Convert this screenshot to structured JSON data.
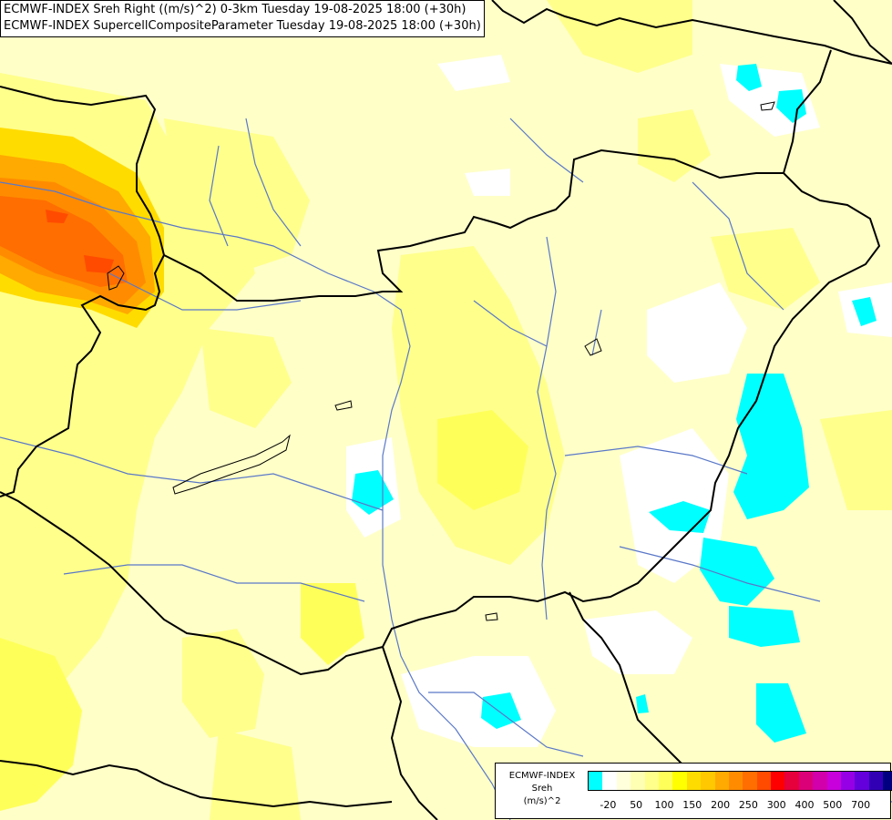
{
  "title_lines": [
    "ECMWF-INDEX Sreh Right ((m/s)^2) 0-3km Tuesday 19-08-2025 18:00 (+30h)",
    "ECMWF-INDEX SupercellCompositeParameter Tuesday 19-08-2025 18:00 (+30h)"
  ],
  "legend": {
    "title_lines": [
      "ECMWF-INDEX",
      "Sreh",
      "(m/s)^2"
    ],
    "colors": [
      "#00ffff",
      "#ffffff",
      "#ffffdc",
      "#ffffb4",
      "#ffff8c",
      "#ffff5a",
      "#ffff00",
      "#ffdc00",
      "#ffc800",
      "#ffaa00",
      "#ff8c00",
      "#ff6e00",
      "#ff4b00",
      "#ff0000",
      "#e6003c",
      "#dc0078",
      "#d200aa",
      "#c800dc",
      "#9600e6",
      "#6400dc",
      "#3200b4",
      "#000080"
    ],
    "ticks": [
      "-20",
      "50",
      "100",
      "150",
      "200",
      "250",
      "300",
      "400",
      "500",
      "700"
    ]
  },
  "map_colors": {
    "background": "#ffffc8",
    "border_line": "#000000",
    "river_line": "#5a78c8"
  }
}
